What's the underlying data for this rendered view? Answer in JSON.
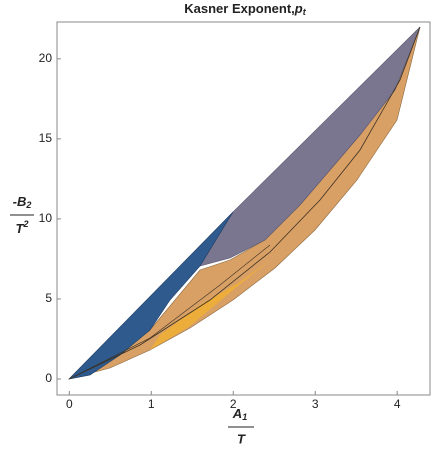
{
  "chart_data": {
    "type": "region",
    "title": "Kasner Exponent,",
    "title_symbol": "p",
    "title_subscript": "t",
    "x_label": {
      "numerator": "A",
      "numerator_subscript": "1",
      "denominator": "T"
    },
    "y_label": {
      "numerator": "-B",
      "numerator_subscript": "2",
      "denominator": "T",
      "denominator_superscript": "2"
    },
    "xlim": [
      -0.15,
      4.4
    ],
    "ylim": [
      -1,
      22.3
    ],
    "xticks": [
      0,
      1,
      2,
      3,
      4
    ],
    "yticks": [
      0,
      5,
      10,
      15,
      20
    ]
  }
}
